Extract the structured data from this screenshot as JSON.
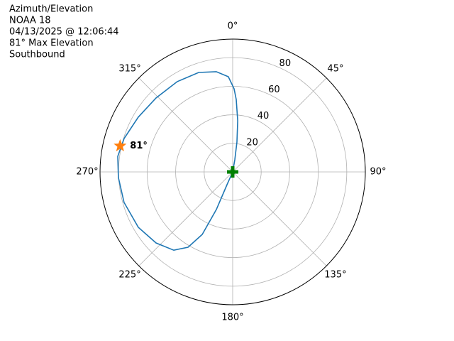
{
  "chart_data": {
    "type": "polar",
    "title_lines": [
      "Azimuth/Elevation",
      "NOAA 18",
      "04/13/2025 @ 12:06:44",
      "81° Max Elevation",
      "Southbound"
    ],
    "series": [
      {
        "color": "#1f77b4",
        "theta": [
          10,
          10,
          8.1,
          5.6,
          2.8,
          1.0,
          357.4,
          350.7,
          341.1,
          328.4,
          313.9,
          300.1,
          287.1,
          277.7,
          267.2,
          254.3,
          239.6,
          227.2,
          217.0,
          210.7,
          206.0,
          203.5,
          204,
          204
        ],
        "r": [
          0,
          8.6,
          21.1,
          36.0,
          50.8,
          58.2,
          66.7,
          71.1,
          73.6,
          74.2,
          74.6,
          76.5,
          79.6,
          81.3,
          80.2,
          79.1,
          76.7,
          73.2,
          68.6,
          61.3,
          48.7,
          28.7,
          9.8,
          0
        ]
      }
    ],
    "max_point": {
      "theta": 283,
      "r": 81,
      "color": "#ff7f0e",
      "value_label": "81°"
    },
    "start_marker": {
      "theta": 0,
      "r": 0,
      "color": "green"
    },
    "ylim": [
      0,
      93
    ],
    "yticks": [
      20,
      40,
      60,
      80
    ],
    "ytick_angle": 22.5,
    "xticks": [
      {
        "value": 0,
        "label": "0°"
      },
      {
        "value": 45,
        "label": "45°"
      },
      {
        "value": 90,
        "label": "90°"
      },
      {
        "value": 135,
        "label": "135°"
      },
      {
        "value": 180,
        "label": "180°"
      },
      {
        "value": 225,
        "label": "225°"
      },
      {
        "value": 270,
        "label": "270°"
      },
      {
        "value": 315,
        "label": "315°"
      }
    ],
    "grid": true
  }
}
